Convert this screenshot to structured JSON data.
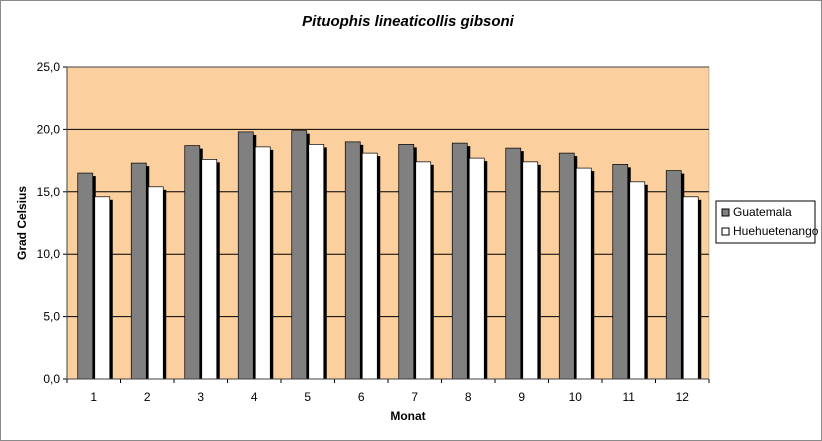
{
  "chart_data": {
    "type": "bar",
    "title": "Pituophis lineaticollis  gibsoni",
    "xlabel": "Monat",
    "ylabel": "Grad Celsius",
    "categories": [
      "1",
      "2",
      "3",
      "4",
      "5",
      "6",
      "7",
      "8",
      "9",
      "10",
      "11",
      "12"
    ],
    "series": [
      {
        "name": "Guatemala",
        "color": "#808080",
        "values": [
          16.5,
          17.3,
          18.7,
          19.8,
          19.9,
          19.0,
          18.8,
          18.9,
          18.5,
          18.1,
          17.2,
          16.7
        ]
      },
      {
        "name": "Huehuetenango",
        "color": "#ffffff",
        "values": [
          14.6,
          15.4,
          17.6,
          18.6,
          18.8,
          18.1,
          17.4,
          17.7,
          17.4,
          16.9,
          15.8,
          14.6
        ]
      }
    ],
    "ylim": [
      0,
      25
    ],
    "yticks": [
      "0,0",
      "5,0",
      "10,0",
      "15,0",
      "20,0",
      "25,0"
    ],
    "plot_background": "#fbcf9e",
    "grid": true,
    "legend_position": "right"
  }
}
